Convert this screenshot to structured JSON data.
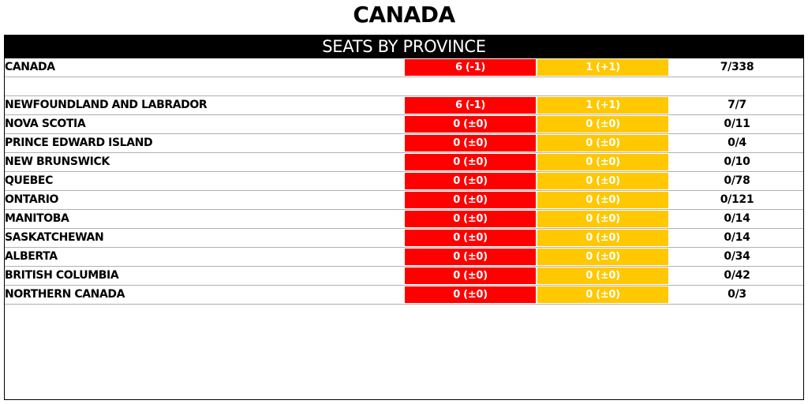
{
  "title": "CANADA",
  "panel": {
    "header": "SEATS BY PROVINCE"
  },
  "colors": {
    "party_a": "#ff0000",
    "party_b": "#ffc800",
    "header_bg": "#000000",
    "row_divider": "#b0b0b0"
  },
  "national": {
    "name": "CANADA",
    "party_a": "6 (-1)",
    "party_b": "1 (+1)",
    "total": "7/338"
  },
  "provinces": [
    {
      "name": "NEWFOUNDLAND AND LABRADOR",
      "party_a": "6 (-1)",
      "party_b": "1 (+1)",
      "total": "7/7"
    },
    {
      "name": "NOVA SCOTIA",
      "party_a": "0 (±0)",
      "party_b": "0 (±0)",
      "total": "0/11"
    },
    {
      "name": "PRINCE EDWARD ISLAND",
      "party_a": "0 (±0)",
      "party_b": "0 (±0)",
      "total": "0/4"
    },
    {
      "name": "NEW BRUNSWICK",
      "party_a": "0 (±0)",
      "party_b": "0 (±0)",
      "total": "0/10"
    },
    {
      "name": "QUEBEC",
      "party_a": "0 (±0)",
      "party_b": "0 (±0)",
      "total": "0/78"
    },
    {
      "name": "ONTARIO",
      "party_a": "0 (±0)",
      "party_b": "0 (±0)",
      "total": "0/121"
    },
    {
      "name": "MANITOBA",
      "party_a": "0 (±0)",
      "party_b": "0 (±0)",
      "total": "0/14"
    },
    {
      "name": "SASKATCHEWAN",
      "party_a": "0 (±0)",
      "party_b": "0 (±0)",
      "total": "0/14"
    },
    {
      "name": "ALBERTA",
      "party_a": "0 (±0)",
      "party_b": "0 (±0)",
      "total": "0/34"
    },
    {
      "name": "BRITISH COLUMBIA",
      "party_a": "0 (±0)",
      "party_b": "0 (±0)",
      "total": "0/42"
    },
    {
      "name": "NORTHERN CANADA",
      "party_a": "0 (±0)",
      "party_b": "0 (±0)",
      "total": "0/3"
    }
  ]
}
